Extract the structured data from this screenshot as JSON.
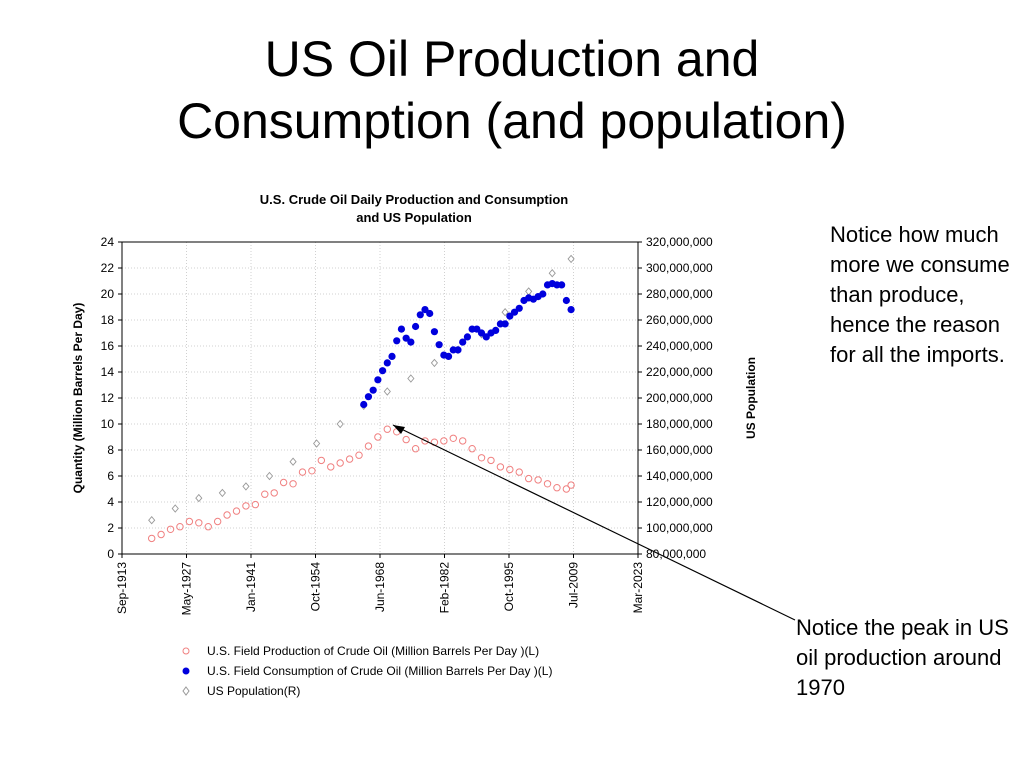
{
  "slide": {
    "title_line1": "US Oil Production and",
    "title_line2": "Consumption (and population)",
    "note_top": "Notice how much more we consume than produce, hence the reason for all the imports.",
    "note_bottom": "Notice the peak in US oil production around 1970"
  },
  "chart_data": {
    "type": "scatter",
    "title_line1": "U.S. Crude Oil Daily Production and Consumption",
    "title_line2": "and US Population",
    "ylabel": "Quantity (Million Barrels Per Day)",
    "y2label": "US Population",
    "ylim": [
      0,
      24
    ],
    "y2lim": [
      80000000,
      320000000
    ],
    "y_ticks": [
      "0",
      "2",
      "4",
      "6",
      "8",
      "10",
      "12",
      "14",
      "16",
      "18",
      "20",
      "22",
      "24"
    ],
    "y2_ticks": [
      "80,000,000",
      "100,000,000",
      "120,000,000",
      "140,000,000",
      "160,000,000",
      "180,000,000",
      "200,000,000",
      "220,000,000",
      "240,000,000",
      "260,000,000",
      "280,000,000",
      "300,000,000",
      "320,000,000"
    ],
    "x_ticks": [
      "Sep-1913",
      "May-1927",
      "Jan-1941",
      "Oct-1954",
      "Jun-1968",
      "Feb-1982",
      "Oct-1995",
      "Jul-2009",
      "Mar-2023"
    ],
    "xlim": [
      1913.7,
      2023.2
    ],
    "grid": true,
    "legend_position": "bottom",
    "colors": {
      "production": "#f08080",
      "consumption": "#0000dd",
      "population": "#999999"
    },
    "series": [
      {
        "name": "U.S. Field Production of  Crude Oil (Million Barrels Per Day )(L)",
        "axis": "left",
        "marker": "open-circle",
        "x": [
          1920,
          1922,
          1924,
          1926,
          1928,
          1930,
          1932,
          1934,
          1936,
          1938,
          1940,
          1942,
          1944,
          1946,
          1948,
          1950,
          1952,
          1954,
          1956,
          1958,
          1960,
          1962,
          1964,
          1966,
          1968,
          1970,
          1972,
          1974,
          1976,
          1978,
          1980,
          1982,
          1984,
          1986,
          1988,
          1990,
          1992,
          1994,
          1996,
          1998,
          2000,
          2002,
          2004,
          2006,
          2008,
          2009
        ],
        "y": [
          1.2,
          1.5,
          1.9,
          2.1,
          2.5,
          2.4,
          2.1,
          2.5,
          3.0,
          3.3,
          3.7,
          3.8,
          4.6,
          4.7,
          5.5,
          5.4,
          6.3,
          6.4,
          7.2,
          6.7,
          7.0,
          7.3,
          7.6,
          8.3,
          9.0,
          9.6,
          9.4,
          8.8,
          8.1,
          8.7,
          8.6,
          8.7,
          8.9,
          8.7,
          8.1,
          7.4,
          7.2,
          6.7,
          6.5,
          6.3,
          5.8,
          5.7,
          5.4,
          5.1,
          5.0,
          5.3
        ]
      },
      {
        "name": "U.S. Field Consumption of  Crude Oil (Million Barrels Per Day )(L)",
        "axis": "left",
        "marker": "filled-circle",
        "x": [
          1965,
          1966,
          1967,
          1968,
          1969,
          1970,
          1971,
          1972,
          1973,
          1974,
          1975,
          1976,
          1977,
          1978,
          1979,
          1980,
          1981,
          1982,
          1983,
          1984,
          1985,
          1986,
          1987,
          1988,
          1989,
          1990,
          1991,
          1992,
          1993,
          1994,
          1995,
          1996,
          1997,
          1998,
          1999,
          2000,
          2001,
          2002,
          2003,
          2004,
          2005,
          2006,
          2007,
          2008,
          2009
        ],
        "y": [
          11.5,
          12.1,
          12.6,
          13.4,
          14.1,
          14.7,
          15.2,
          16.4,
          17.3,
          16.6,
          16.3,
          17.5,
          18.4,
          18.8,
          18.5,
          17.1,
          16.1,
          15.3,
          15.2,
          15.7,
          15.7,
          16.3,
          16.7,
          17.3,
          17.3,
          17.0,
          16.7,
          17.0,
          17.2,
          17.7,
          17.7,
          18.3,
          18.6,
          18.9,
          19.5,
          19.7,
          19.6,
          19.8,
          20.0,
          20.7,
          20.8,
          20.7,
          20.7,
          19.5,
          18.8
        ]
      },
      {
        "name": "US Population(R)",
        "axis": "right",
        "marker": "open-diamond",
        "x": [
          1920,
          1925,
          1930,
          1935,
          1940,
          1945,
          1950,
          1955,
          1960,
          1965,
          1970,
          1975,
          1980,
          1985,
          1990,
          1995,
          2000,
          2005,
          2009
        ],
        "y": [
          106000000,
          115000000,
          123000000,
          127000000,
          132000000,
          140000000,
          151000000,
          165000000,
          180000000,
          194000000,
          205000000,
          215000000,
          227000000,
          237000000,
          249000000,
          266000000,
          282000000,
          296000000,
          307000000
        ]
      }
    ]
  }
}
